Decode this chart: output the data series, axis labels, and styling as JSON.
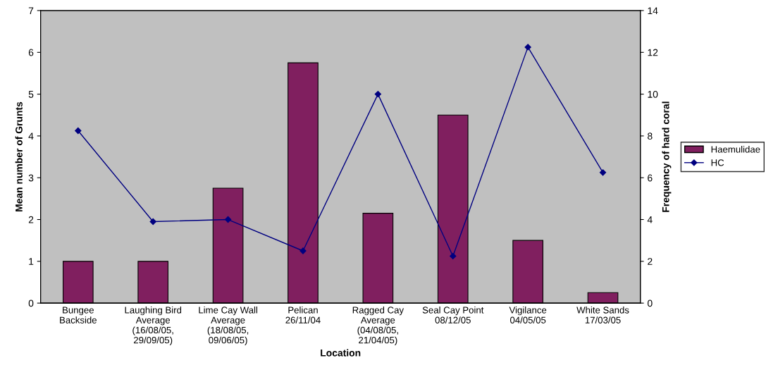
{
  "chart_data": {
    "type": "bar",
    "xlabel": "Location",
    "ylabel": "Mean number of Grunts",
    "y2label": "Frequency of hard coral",
    "categories": [
      "Bungee\nBackside",
      "Laughing Bird\nAverage\n(16/08/05,\n29/09/05)",
      "Lime Cay Wall\nAverage\n(18/08/05,\n09/06/05)",
      "Pelican\n26/11/04",
      "Ragged Cay\nAverage\n(04/08/05,\n21/04/05)",
      "Seal Cay Point\n08/12/05",
      "Vigilance\n04/05/05",
      "White Sands\n17/03/05"
    ],
    "series": [
      {
        "name": "Haemulidae",
        "color": "#801f5f",
        "values": [
          1,
          1,
          2.75,
          5.75,
          2.15,
          4.5,
          1.5,
          0.25
        ]
      },
      {
        "name": "HC",
        "type": "line",
        "axis": "y2",
        "color": "#000080",
        "marker": "diamond",
        "values": [
          8.25,
          3.9,
          4.0,
          2.5,
          10,
          2.25,
          12.25,
          6.25
        ]
      }
    ],
    "ylim": [
      0,
      7
    ],
    "yticks": [
      0,
      1,
      2,
      3,
      4,
      5,
      6,
      7
    ],
    "y2lim": [
      0,
      14
    ],
    "y2ticks": [
      0,
      2,
      4,
      6,
      8,
      10,
      12,
      14
    ],
    "grid": false,
    "legend": "right"
  }
}
